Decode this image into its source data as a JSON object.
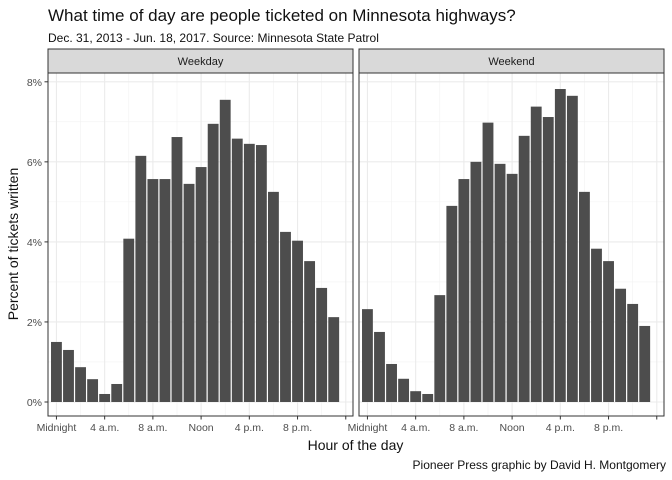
{
  "chart_data": {
    "type": "bar",
    "title": "What time of day are people ticketed on Minnesota highways?",
    "subtitle": "Dec. 31, 2013 - Jun. 18, 2017. Source: Minnesota State Patrol",
    "caption": "Pioneer Press graphic by David H. Montgomery",
    "xlabel": "Hour of the day",
    "ylabel": "Percent of tickets written",
    "ylim": [
      0,
      8.2
    ],
    "y_ticks": [
      {
        "value": 0,
        "label": "0%"
      },
      {
        "value": 2,
        "label": "2%"
      },
      {
        "value": 4,
        "label": "4%"
      },
      {
        "value": 6,
        "label": "6%"
      },
      {
        "value": 8,
        "label": "8%"
      }
    ],
    "x_ticks": [
      {
        "value": 0,
        "label": "Midnight"
      },
      {
        "value": 4,
        "label": "4 a.m."
      },
      {
        "value": 8,
        "label": "8 a.m."
      },
      {
        "value": 12,
        "label": "Noon"
      },
      {
        "value": 16,
        "label": "4 p.m."
      },
      {
        "value": 20,
        "label": "8 p.m."
      },
      {
        "value": 24,
        "label": ""
      }
    ],
    "categories": [
      0,
      1,
      2,
      3,
      4,
      5,
      6,
      7,
      8,
      9,
      10,
      11,
      12,
      13,
      14,
      15,
      16,
      17,
      18,
      19,
      20,
      21,
      22,
      23
    ],
    "grid": true,
    "bar_color": "#4d4d4d",
    "panels": [
      {
        "name": "Weekday",
        "values": [
          1.5,
          1.3,
          0.87,
          0.57,
          0.2,
          0.45,
          4.08,
          6.15,
          5.57,
          5.57,
          6.62,
          5.45,
          5.87,
          6.95,
          7.55,
          6.58,
          6.45,
          6.42,
          5.25,
          4.25,
          4.03,
          3.52,
          2.85,
          2.12
        ]
      },
      {
        "name": "Weekend",
        "values": [
          2.32,
          1.75,
          0.95,
          0.58,
          0.27,
          0.2,
          2.67,
          4.9,
          5.57,
          6.0,
          6.98,
          5.95,
          5.7,
          6.65,
          7.38,
          7.12,
          7.82,
          7.65,
          5.25,
          3.83,
          3.52,
          2.83,
          2.45,
          1.9
        ]
      }
    ]
  }
}
